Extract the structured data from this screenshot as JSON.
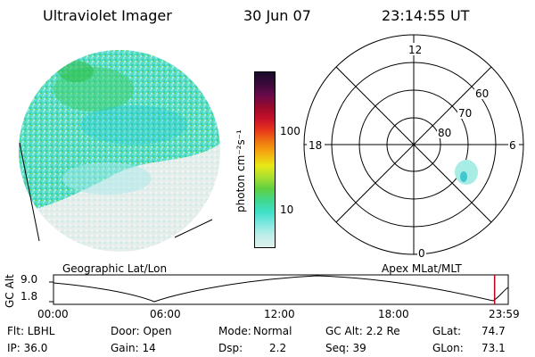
{
  "header": {
    "instrument": "Ultraviolet Imager",
    "date": "30 Jun 07",
    "time": "23:14:55 UT"
  },
  "colorbar": {
    "label": "photon cm⁻²s⁻¹",
    "ticks": [
      "100",
      "10"
    ],
    "colors": [
      "#1a0a2a",
      "#3a0a3a",
      "#6a0a4a",
      "#9a0a2a",
      "#c8102a",
      "#e8381a",
      "#f07a10",
      "#f4b010",
      "#e8e818",
      "#a8e030",
      "#60d040",
      "#40d890",
      "#40e0c8",
      "#80e8e0",
      "#c0eee8",
      "#e0f0ee"
    ]
  },
  "polar_plot": {
    "mlt_labels": {
      "top": "12",
      "left": "18",
      "right": "6",
      "bottom": "0"
    },
    "lat_labels": [
      "60",
      "70",
      "80"
    ]
  },
  "timeline": {
    "left_label": "Geographic Lat/Lon",
    "right_label": "Apex MLat/MLT",
    "axis_label": "GC Alt",
    "y_ticks": [
      "9.0",
      "1.8"
    ],
    "x_ticks": [
      "00:00",
      "06:00",
      "12:00",
      "18:00",
      "23:59"
    ],
    "cursor_fraction": 0.97
  },
  "info": {
    "row1": {
      "flt": "Flt: LBHL",
      "door": "Door: Open",
      "mode_label": "Mode:",
      "mode_value": "Normal",
      "gcalt": "GC Alt: 2.2 Re",
      "glat_label": "GLat:",
      "glat_value": "74.7"
    },
    "row2": {
      "ip": "IP: 36.0",
      "gain": "Gain: 14",
      "dsp_label": "Dsp:",
      "dsp_value": "2.2",
      "seq": "Seq: 39",
      "glon_label": "GLon:",
      "glon_value": "73.1"
    }
  }
}
